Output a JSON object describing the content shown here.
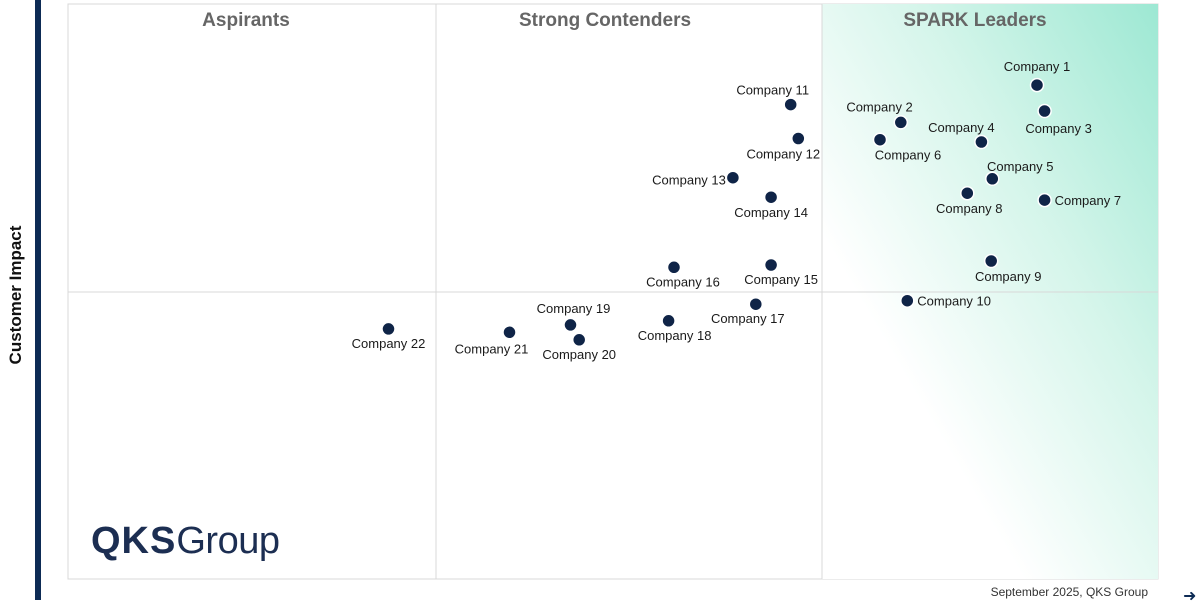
{
  "y_axis_label": "Customer Impact",
  "brand": {
    "strong": "QKS",
    "rest": "Group"
  },
  "footer_note": "September 2025, QKS Group",
  "chart_data": {
    "type": "scatter",
    "quadrants": [
      {
        "name": "Aspirants"
      },
      {
        "name": "Strong Contenders"
      },
      {
        "name": "SPARK Leaders"
      }
    ],
    "ylabel": "Customer Impact",
    "grid": true,
    "colors": {
      "point": "#0f2447",
      "leader_gradient_start": "#9de8d3",
      "leader_gradient_end": "#ffffff"
    },
    "points": [
      {
        "label": "Company 1",
        "x": 0.889,
        "y": 0.859
      },
      {
        "label": "Company 2",
        "x": 0.764,
        "y": 0.794
      },
      {
        "label": "Company 3",
        "x": 0.896,
        "y": 0.814
      },
      {
        "label": "Company 4",
        "x": 0.838,
        "y": 0.76
      },
      {
        "label": "Company 5",
        "x": 0.848,
        "y": 0.696
      },
      {
        "label": "Company 6",
        "x": 0.745,
        "y": 0.764
      },
      {
        "label": "Company 7",
        "x": 0.896,
        "y": 0.659
      },
      {
        "label": "Company 8",
        "x": 0.825,
        "y": 0.671
      },
      {
        "label": "Company 9",
        "x": 0.847,
        "y": 0.553
      },
      {
        "label": "Company 10",
        "x": 0.77,
        "y": 0.484
      },
      {
        "label": "Company 11",
        "x": 0.663,
        "y": 0.825
      },
      {
        "label": "Company 12",
        "x": 0.67,
        "y": 0.766
      },
      {
        "label": "Company 13",
        "x": 0.61,
        "y": 0.698
      },
      {
        "label": "Company 14",
        "x": 0.645,
        "y": 0.664
      },
      {
        "label": "Company 15",
        "x": 0.645,
        "y": 0.546
      },
      {
        "label": "Company 16",
        "x": 0.556,
        "y": 0.542
      },
      {
        "label": "Company 17",
        "x": 0.631,
        "y": 0.478
      },
      {
        "label": "Company 18",
        "x": 0.551,
        "y": 0.449
      },
      {
        "label": "Company 19",
        "x": 0.461,
        "y": 0.442
      },
      {
        "label": "Company 20",
        "x": 0.469,
        "y": 0.416
      },
      {
        "label": "Company 21",
        "x": 0.405,
        "y": 0.429
      },
      {
        "label": "Company 22",
        "x": 0.294,
        "y": 0.435
      }
    ]
  }
}
